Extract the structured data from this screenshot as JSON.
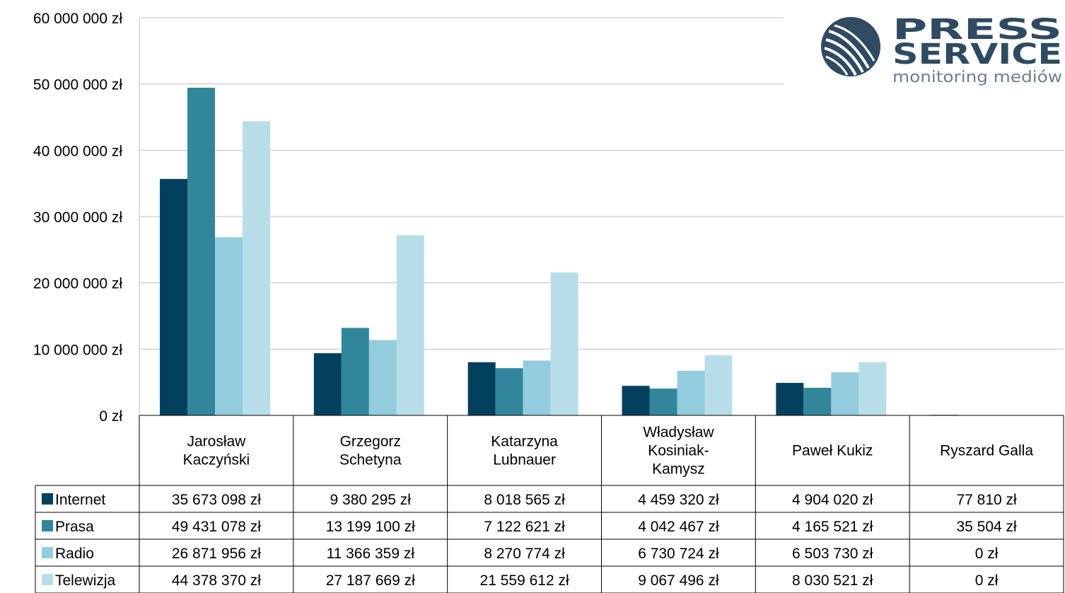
{
  "logo": {
    "line1": "PRESS",
    "line2": "SERVICE",
    "line3": "monitoring mediów"
  },
  "chart_data": {
    "type": "bar",
    "title": "",
    "xlabel": "",
    "ylabel": "",
    "ylim": [
      0,
      60000000
    ],
    "y_ticks": [
      0,
      10000000,
      20000000,
      30000000,
      40000000,
      50000000,
      60000000
    ],
    "y_tick_labels": [
      "0 zł",
      "10 000 000 zł",
      "20 000 000 zł",
      "30 000 000 zł",
      "40 000 000 zł",
      "50 000 000 zł",
      "60 000 000 zł"
    ],
    "grid": true,
    "legend_placement": "data-table-left",
    "categories": [
      [
        "Jarosław",
        "Kaczyński"
      ],
      [
        "Grzegorz",
        "Schetyna"
      ],
      [
        "Katarzyna",
        "Lubnauer"
      ],
      [
        "Władysław",
        "Kosiniak-",
        "Kamysz"
      ],
      [
        "Paweł Kukiz"
      ],
      [
        "Ryszard Galla"
      ]
    ],
    "series": [
      {
        "name": "Internet",
        "color": "#03405e",
        "values": [
          35673098,
          9380295,
          8018565,
          4459320,
          4904020,
          77810
        ],
        "labels": [
          "35 673 098 zł",
          "9 380 295 zł",
          "8 018 565 zł",
          "4 459 320 zł",
          "4 904 020 zł",
          "77 810 zł"
        ]
      },
      {
        "name": "Prasa",
        "color": "#31869b",
        "values": [
          49431078,
          13199100,
          7122621,
          4042467,
          4165521,
          35504
        ],
        "labels": [
          "49 431 078 zł",
          "13 199 100 zł",
          "7 122 621 zł",
          "4 042 467 zł",
          "4 165 521 zł",
          "35 504 zł"
        ]
      },
      {
        "name": "Radio",
        "color": "#93cddd",
        "values": [
          26871956,
          11366359,
          8270774,
          6730724,
          6503730,
          0
        ],
        "labels": [
          "26 871 956 zł",
          "11 366 359 zł",
          "8 270 774 zł",
          "6 730 724 zł",
          "6 503 730 zł",
          "0 zł"
        ]
      },
      {
        "name": "Telewizja",
        "color": "#b7dee8",
        "values": [
          44378370,
          27187669,
          21559612,
          9067496,
          8030521,
          0
        ],
        "labels": [
          "44 378 370 zł",
          "27 187 669 zł",
          "21 559 612 zł",
          "9 067 496 zł",
          "8 030 521 zł",
          "0 zł"
        ]
      }
    ]
  }
}
